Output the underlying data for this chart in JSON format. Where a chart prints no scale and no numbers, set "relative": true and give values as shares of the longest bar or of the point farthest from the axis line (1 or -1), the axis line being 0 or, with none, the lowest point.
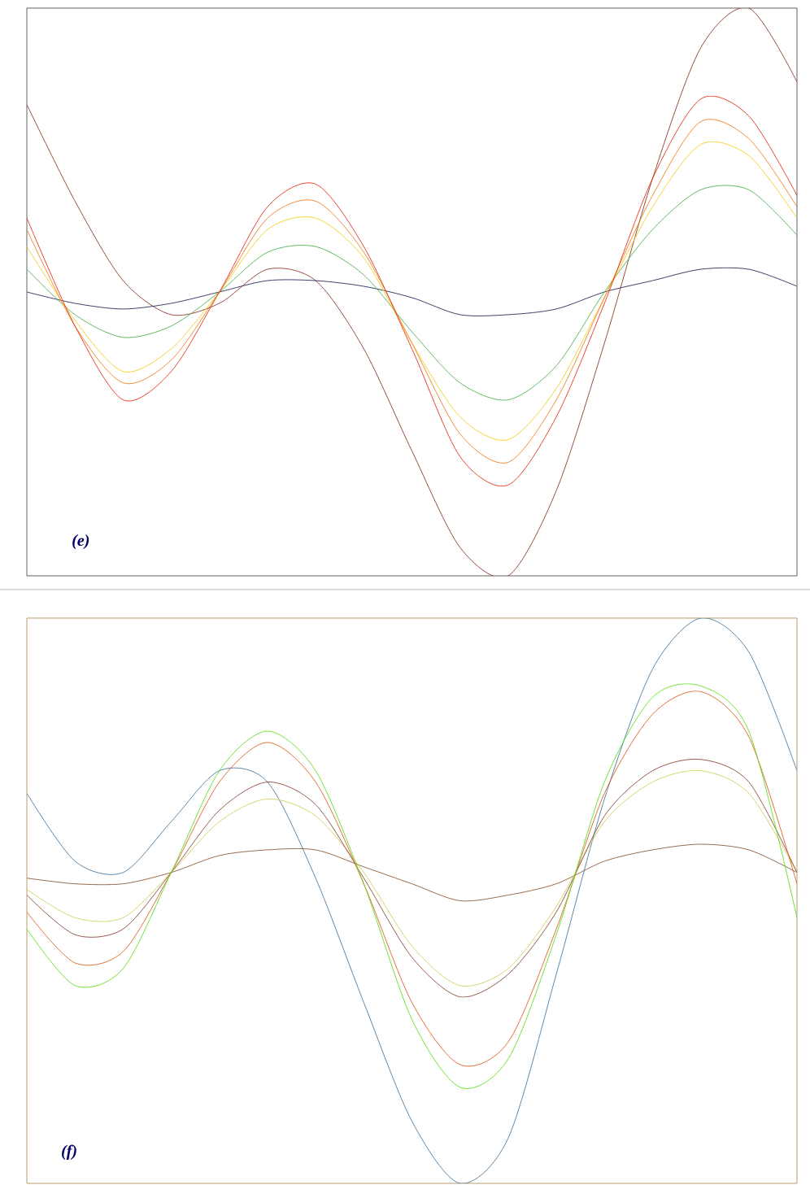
{
  "chart_data": [
    {
      "type": "line",
      "relative": true,
      "annotations": [
        "(e)"
      ],
      "categories": [
        null,
        null,
        null,
        null,
        null,
        null,
        null,
        null,
        null,
        null,
        null,
        null,
        null,
        null,
        null,
        null,
        null
      ],
      "series": [
        {
          "color": "#8b3a2a",
          "values": [
            0.83,
            0.66,
            0.52,
            0.46,
            0.48,
            0.54,
            0.52,
            0.4,
            0.22,
            0.05,
            0,
            0.15,
            0.41,
            0.7,
            0.93,
            1,
            0.87
          ]
        },
        {
          "color": "#2a2a5a",
          "values": [
            0.5,
            0.48,
            0.47,
            0.48,
            0.5,
            0.52,
            0.52,
            0.51,
            0.49,
            0.46,
            0.46,
            0.47,
            0.5,
            0.52,
            0.54,
            0.54,
            0.51
          ]
        },
        {
          "color": "#50b050",
          "values": [
            0.54,
            0.46,
            0.42,
            0.44,
            0.5,
            0.57,
            0.58,
            0.53,
            0.43,
            0.34,
            0.31,
            0.37,
            0.5,
            0.61,
            0.68,
            0.68,
            0.6
          ]
        },
        {
          "color": "#f0d020",
          "values": [
            0.58,
            0.45,
            0.36,
            0.4,
            0.5,
            0.61,
            0.63,
            0.56,
            0.41,
            0.28,
            0.24,
            0.33,
            0.49,
            0.65,
            0.76,
            0.74,
            0.63
          ]
        },
        {
          "color": "#f08020",
          "values": [
            0.61,
            0.44,
            0.34,
            0.38,
            0.5,
            0.63,
            0.66,
            0.57,
            0.41,
            0.25,
            0.2,
            0.31,
            0.49,
            0.67,
            0.8,
            0.77,
            0.65
          ]
        },
        {
          "color": "#e8301a",
          "values": [
            0.63,
            0.44,
            0.31,
            0.36,
            0.5,
            0.65,
            0.69,
            0.58,
            0.4,
            0.21,
            0.16,
            0.28,
            0.48,
            0.7,
            0.84,
            0.81,
            0.67
          ]
        }
      ]
    },
    {
      "type": "line",
      "relative": true,
      "annotations": [
        "(f)"
      ],
      "categories": [
        null,
        null,
        null,
        null,
        null,
        null,
        null,
        null,
        null,
        null,
        null,
        null,
        null,
        null,
        null,
        null,
        null
      ],
      "series": [
        {
          "color": "#4a7aa0",
          "values": [
            0.69,
            0.57,
            0.55,
            0.64,
            0.73,
            0.71,
            0.54,
            0.32,
            0.11,
            0,
            0.08,
            0.37,
            0.68,
            0.91,
            1,
            0.94,
            0.73
          ]
        },
        {
          "color": "#8b5a3a",
          "values": [
            0.54,
            0.53,
            0.53,
            0.55,
            0.58,
            0.59,
            0.59,
            0.56,
            0.53,
            0.5,
            0.51,
            0.53,
            0.57,
            0.59,
            0.6,
            0.59,
            0.55
          ]
        },
        {
          "color": "#d0d060",
          "values": [
            0.52,
            0.47,
            0.47,
            0.55,
            0.64,
            0.68,
            0.65,
            0.55,
            0.42,
            0.35,
            0.38,
            0.49,
            0.64,
            0.71,
            0.73,
            0.69,
            0.55
          ]
        },
        {
          "color": "#8b4a3a",
          "values": [
            0.51,
            0.44,
            0.45,
            0.55,
            0.66,
            0.71,
            0.67,
            0.54,
            0.4,
            0.33,
            0.37,
            0.48,
            0.65,
            0.73,
            0.75,
            0.71,
            0.55
          ]
        },
        {
          "color": "#e06020",
          "values": [
            0.48,
            0.39,
            0.41,
            0.55,
            0.71,
            0.78,
            0.71,
            0.53,
            0.32,
            0.21,
            0.25,
            0.45,
            0.69,
            0.83,
            0.87,
            0.79,
            0.53
          ]
        },
        {
          "color": "#60e020",
          "values": [
            0.45,
            0.35,
            0.38,
            0.55,
            0.73,
            0.8,
            0.73,
            0.53,
            0.29,
            0.17,
            0.22,
            0.44,
            0.71,
            0.86,
            0.88,
            0.8,
            0.47
          ]
        }
      ]
    }
  ]
}
